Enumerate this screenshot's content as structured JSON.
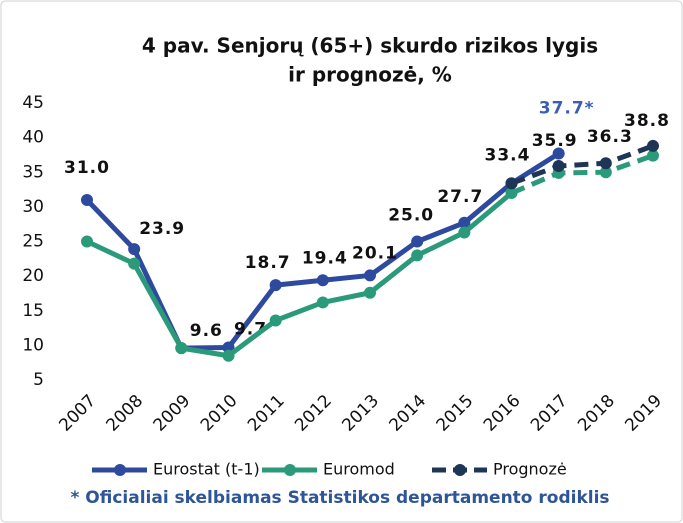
{
  "chart_data": {
    "type": "line",
    "title": [
      "4 pav. Senjorų (65+) skurdo rizikos lygis",
      "ir prognozė, %"
    ],
    "categories": [
      "2007",
      "2008",
      "2009",
      "2010",
      "2011",
      "2012",
      "2013",
      "2014",
      "2015",
      "2016",
      "2017",
      "2018",
      "2019"
    ],
    "series": [
      {
        "name": "Eurostat (t-1)",
        "color": "#2e4a9e",
        "values": [
          31.0,
          23.9,
          9.6,
          9.7,
          18.7,
          19.4,
          20.1,
          25.0,
          27.7,
          33.4,
          37.7,
          null,
          null
        ],
        "value_labels": [
          "31.0",
          "23.9",
          "9.6",
          "9.7",
          "18.7",
          "19.4",
          "20.1",
          "25.0",
          "27.7",
          "33.4",
          "37.7*",
          null,
          null
        ],
        "label_colors": [
          "#111111",
          "#111111",
          "#111111",
          "#111111",
          "#111111",
          "#111111",
          "#111111",
          "#111111",
          "#111111",
          "#111111",
          "#3a5eb5",
          null,
          null
        ]
      },
      {
        "name": "Euromod",
        "color": "#2a9a7a",
        "dashed_from": 9,
        "values": [
          25.0,
          21.8,
          9.6,
          8.5,
          13.6,
          16.2,
          17.6,
          23.0,
          26.3,
          32.0,
          34.9,
          35.0,
          37.4
        ]
      },
      {
        "name": "Prognozė",
        "color": "#1f3556",
        "dashed_from": 0,
        "values": [
          null,
          null,
          null,
          null,
          null,
          null,
          null,
          null,
          null,
          33.4,
          35.9,
          36.3,
          38.8
        ],
        "value_labels": [
          null,
          null,
          null,
          null,
          null,
          null,
          null,
          null,
          null,
          null,
          "35.9",
          "36.3",
          "38.8"
        ]
      }
    ],
    "ylim": [
      5,
      45
    ],
    "yticks": [
      5,
      10,
      15,
      20,
      25,
      30,
      35,
      40,
      45
    ],
    "grid": false,
    "legend": "bottom",
    "footnote": "* Oficialiai skelbiamas Statistikos departamento rodiklis"
  }
}
